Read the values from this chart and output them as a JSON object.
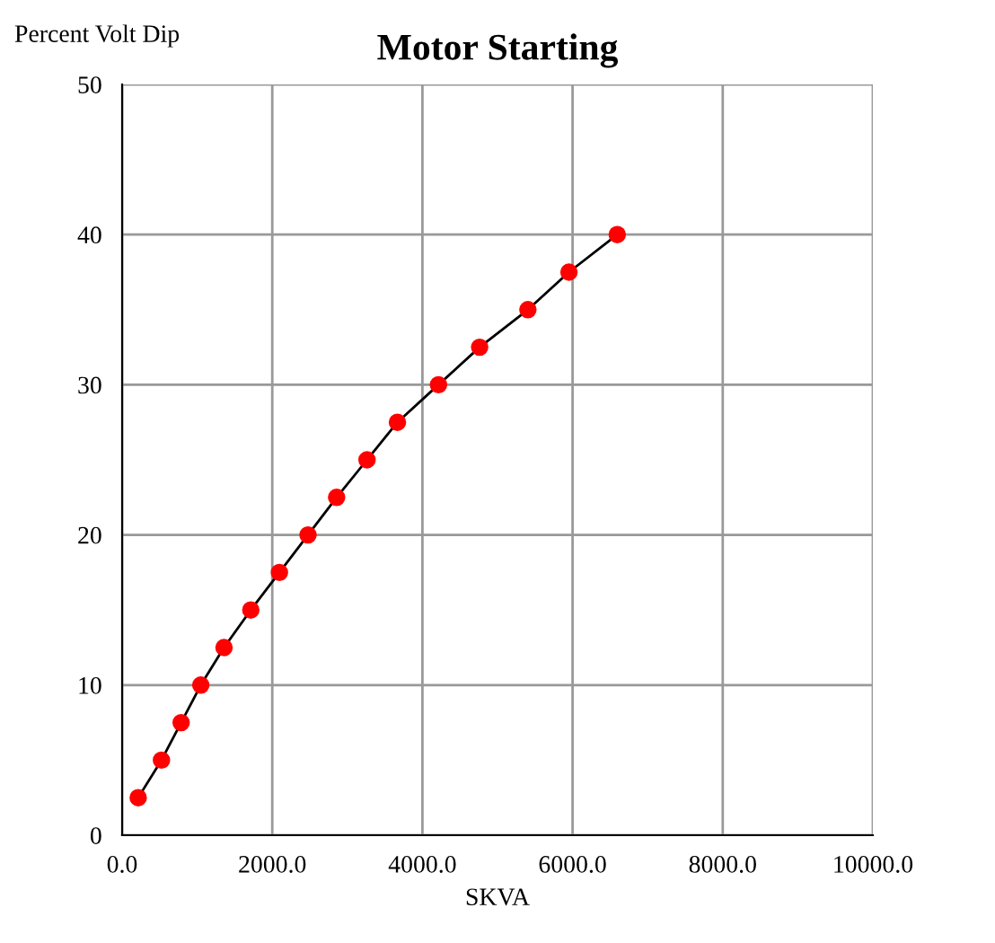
{
  "chart_data": {
    "type": "line",
    "title": "Motor Starting",
    "xlabel": "SKVA",
    "ylabel": "Percent Volt Dip",
    "x": [
      214,
      524,
      786,
      1048,
      1357,
      1714,
      2095,
      2476,
      2857,
      3262,
      3667,
      4214,
      4762,
      5405,
      5952,
      6595
    ],
    "series": [
      {
        "color": "#ff0000",
        "values": [
          2.5,
          5,
          7.5,
          10,
          12.5,
          15,
          17.5,
          20,
          22.5,
          25,
          27.5,
          30,
          32.5,
          35,
          37.5,
          40
        ]
      }
    ],
    "xlim": [
      0,
      10000
    ],
    "xticks": [
      {
        "value": 0,
        "label": "0.0"
      },
      {
        "value": 2000,
        "label": "2000.0"
      },
      {
        "value": 4000,
        "label": "4000.0"
      },
      {
        "value": 6000,
        "label": "6000.0"
      },
      {
        "value": 8000,
        "label": "8000.0"
      },
      {
        "value": 10000,
        "label": "10000.0"
      }
    ],
    "ylim": [
      0,
      50
    ],
    "yticks": [
      0,
      10,
      20,
      30,
      40,
      50
    ],
    "grid": true,
    "marker": "circle",
    "line_style": "solid"
  }
}
